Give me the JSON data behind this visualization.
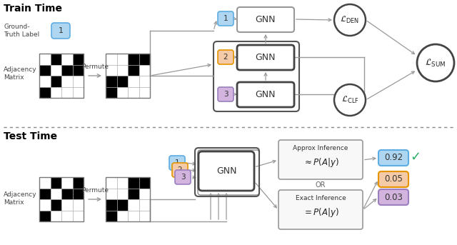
{
  "title_train": "Train Time",
  "title_test": "Test Time",
  "bg_color": "#ffffff",
  "matrix1": [
    [
      0,
      1,
      0,
      1
    ],
    [
      1,
      0,
      1,
      1
    ],
    [
      0,
      1,
      0,
      0
    ],
    [
      1,
      0,
      0,
      0
    ]
  ],
  "matrix2": [
    [
      0,
      0,
      1,
      1
    ],
    [
      0,
      0,
      1,
      0
    ],
    [
      1,
      1,
      0,
      0
    ],
    [
      1,
      0,
      0,
      0
    ]
  ],
  "label_color_1": "#aed6f1",
  "label_color_2": "#f5cba7",
  "label_color_3": "#d2b4de",
  "label_border_1": "#5dade2",
  "label_border_2": "#e59400",
  "label_border_3": "#9b7fc0",
  "gnn_bg": "#ffffff",
  "gnn_border_dark": "#444444",
  "gnn_border_light": "#888888",
  "arrow_color": "#999999",
  "result_colors": [
    "#aed6f1",
    "#f5cba7",
    "#d2b4de"
  ],
  "result_borders": [
    "#5dade2",
    "#e59400",
    "#9b7fc0"
  ],
  "result_values": [
    "0.92",
    "0.05",
    "0.03"
  ],
  "checkmark_color": "#27ae60"
}
